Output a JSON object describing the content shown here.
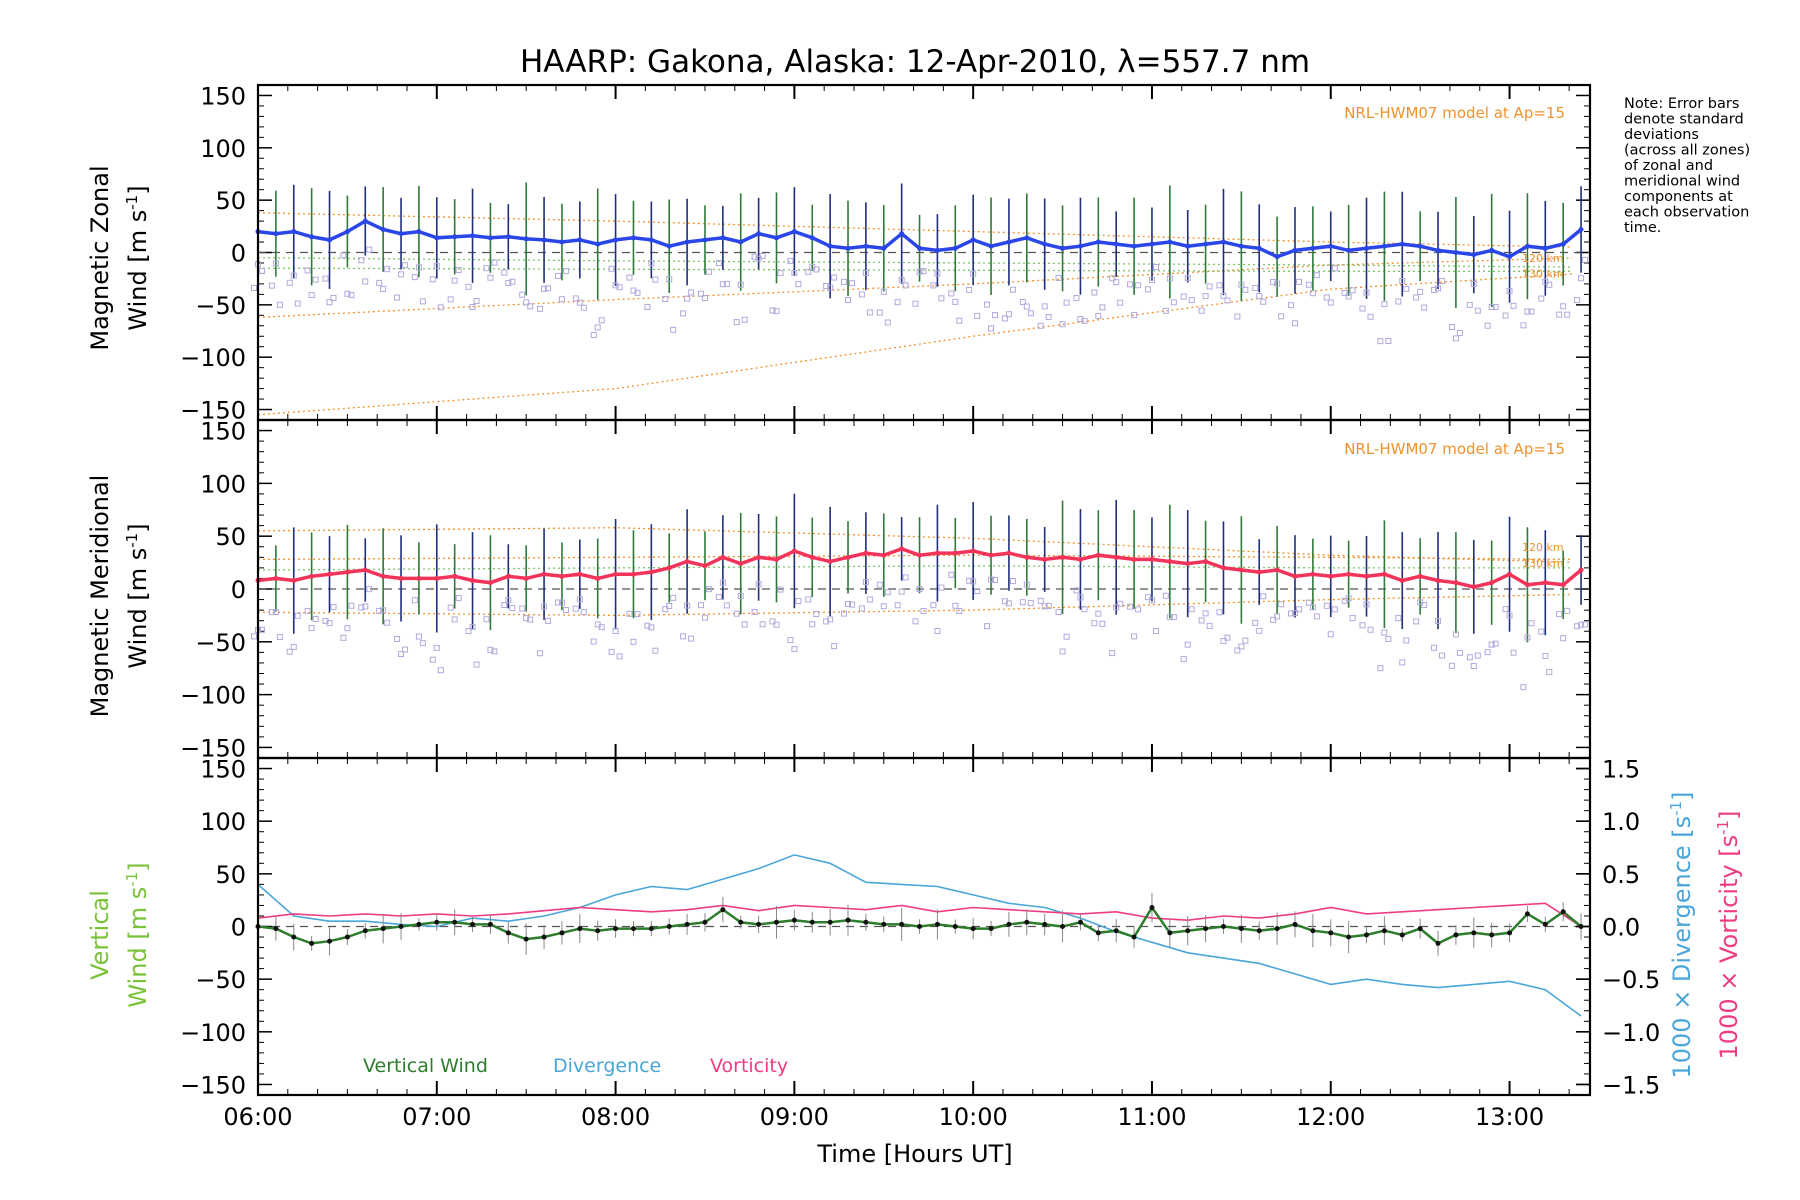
{
  "title": "HAARP: Gakona,  Alaska: 12-Apr-2010, λ=557.7 nm",
  "note_lines": [
    "Note: Error bars",
    "denote standard",
    "deviations",
    "(across all zones)",
    "of zonal and",
    "meridional wind",
    "components at",
    "each observation",
    "time."
  ],
  "x_axis": {
    "label": "Time [Hours UT]",
    "ticks": [
      "06:00",
      "07:00",
      "08:00",
      "09:00",
      "10:00",
      "11:00",
      "12:00",
      "13:00"
    ],
    "range_hours": [
      6.0,
      13.45
    ]
  },
  "colors": {
    "zonal": "#2a46e8",
    "meridional": "#f2335a",
    "vertical_label": "#7ac23a",
    "vertical_line": "#2d7d2d",
    "divergence": "#4aa6d9",
    "vorticity": "#ee3c83",
    "model": "#f0922e",
    "scatter": "#b2a9dc"
  },
  "panels": {
    "zonal": {
      "ylabel_line1": "Magnetic Zonal",
      "ylabel_line2": "Wind [m s",
      "ylabel_sup": "-1",
      "ylabel_end": "]",
      "model_label": "NRL-HWM07 model at Ap=15",
      "alt_label_1": "120 km",
      "alt_label_2": "130 km",
      "yticks": [
        "150",
        "100",
        "50",
        "0",
        "−50",
        "−100",
        "−150"
      ]
    },
    "meridional": {
      "ylabel_line1": "Magnetic Meridional",
      "ylabel_line2": "Wind [m s",
      "ylabel_sup": "-1",
      "ylabel_end": "]",
      "model_label": "NRL-HWM07 model at Ap=15",
      "alt_label_1": "120 km",
      "alt_label_2": "130 km",
      "yticks": [
        "150",
        "100",
        "50",
        "0",
        "−50",
        "−100",
        "−150"
      ]
    },
    "vertical": {
      "ylabel_line1": "Vertical",
      "ylabel_line2": "Wind [m s",
      "ylabel_sup": "-1",
      "ylabel_end": "]",
      "yticks": [
        "150",
        "100",
        "50",
        "0",
        "−50",
        "−100",
        "−150"
      ],
      "right_ticks": [
        "1.5",
        "1.0",
        "0.5",
        "0.0",
        "−0.5",
        "−1.0",
        "−1.5"
      ],
      "right_label_div": "1000 × Divergence [s",
      "right_label_vor": "1000 × Vorticity [s",
      "right_sup": "-1",
      "right_end": "]",
      "legend": [
        "Vertical Wind",
        "Divergence",
        "Vorticity"
      ]
    }
  },
  "chart_data": [
    {
      "type": "line",
      "title": "HAARP: Gakona,  Alaska: 12-Apr-2010, λ=557.7 nm",
      "ylabel": "Magnetic Zonal Wind [m s-1]",
      "ylim": [
        -160,
        160
      ],
      "series": [
        {
          "x": [
            6.0,
            6.1,
            6.2,
            6.3,
            6.4,
            6.5,
            6.6,
            6.7,
            6.8,
            6.9,
            7.0,
            7.1,
            7.2,
            7.3,
            7.4,
            7.5,
            7.6,
            7.7,
            7.8,
            7.9,
            8.0,
            8.1,
            8.2,
            8.3,
            8.4,
            8.5,
            8.6,
            8.7,
            8.8,
            8.9,
            9.0,
            9.1,
            9.2,
            9.3,
            9.4,
            9.5,
            9.6,
            9.7,
            9.8,
            9.9,
            10.0,
            10.1,
            10.2,
            10.3,
            10.4,
            10.5,
            10.6,
            10.7,
            10.8,
            10.9,
            11.0,
            11.1,
            11.2,
            11.3,
            11.4,
            11.5,
            11.6,
            11.7,
            11.8,
            11.9,
            12.0,
            12.1,
            12.2,
            12.3,
            12.4,
            12.5,
            12.6,
            12.7,
            12.8,
            12.9,
            13.0,
            13.1,
            13.2,
            13.3,
            13.4
          ],
          "y": [
            20,
            18,
            20,
            15,
            12,
            20,
            30,
            22,
            18,
            20,
            14,
            15,
            16,
            14,
            15,
            13,
            12,
            10,
            12,
            8,
            12,
            14,
            12,
            6,
            10,
            12,
            14,
            10,
            18,
            14,
            20,
            14,
            6,
            4,
            6,
            4,
            18,
            4,
            2,
            4,
            12,
            6,
            10,
            14,
            8,
            4,
            6,
            10,
            8,
            6,
            8,
            10,
            6,
            8,
            10,
            6,
            4,
            -4,
            2,
            4,
            6,
            2,
            4,
            6,
            8,
            6,
            2,
            0,
            -2,
            2,
            -4,
            6,
            4,
            8,
            22
          ]
        }
      ],
      "model_curves": [
        {
          "x": [
            6.0,
            8.0,
            10.0,
            12.0,
            13.4
          ],
          "y": [
            -62,
            -45,
            -30,
            -12,
            -5
          ]
        },
        {
          "x": [
            6.0,
            8.0,
            10.0,
            12.0,
            13.4
          ],
          "y": [
            -155,
            -130,
            -80,
            -35,
            -20
          ]
        },
        {
          "x": [
            6.0,
            8.0,
            10.0,
            12.0,
            13.4
          ],
          "y": [
            38,
            30,
            20,
            10,
            5
          ]
        },
        {
          "x": [
            6.0,
            8.0,
            10.0,
            12.0,
            13.4
          ],
          "y": [
            -15,
            -16,
            -17,
            -18,
            -18
          ]
        },
        {
          "x": [
            6.0,
            8.0,
            10.0,
            12.0,
            13.4
          ],
          "y": [
            -5,
            -8,
            -10,
            -12,
            -14
          ]
        }
      ]
    },
    {
      "type": "line",
      "ylabel": "Magnetic Meridional Wind [m s-1]",
      "ylim": [
        -160,
        160
      ],
      "series": [
        {
          "x": [
            6.0,
            6.1,
            6.2,
            6.3,
            6.4,
            6.5,
            6.6,
            6.7,
            6.8,
            6.9,
            7.0,
            7.1,
            7.2,
            7.3,
            7.4,
            7.5,
            7.6,
            7.7,
            7.8,
            7.9,
            8.0,
            8.1,
            8.2,
            8.3,
            8.4,
            8.5,
            8.6,
            8.7,
            8.8,
            8.9,
            9.0,
            9.1,
            9.2,
            9.3,
            9.4,
            9.5,
            9.6,
            9.7,
            9.8,
            9.9,
            10.0,
            10.1,
            10.2,
            10.3,
            10.4,
            10.5,
            10.6,
            10.7,
            10.8,
            10.9,
            11.0,
            11.1,
            11.2,
            11.3,
            11.4,
            11.5,
            11.6,
            11.7,
            11.8,
            11.9,
            12.0,
            12.1,
            12.2,
            12.3,
            12.4,
            12.5,
            12.6,
            12.7,
            12.8,
            12.9,
            13.0,
            13.1,
            13.2,
            13.3,
            13.4
          ],
          "y": [
            8,
            10,
            8,
            12,
            14,
            16,
            18,
            12,
            10,
            10,
            10,
            12,
            8,
            6,
            12,
            10,
            14,
            12,
            14,
            10,
            14,
            14,
            16,
            20,
            26,
            22,
            30,
            24,
            30,
            28,
            36,
            30,
            26,
            30,
            34,
            32,
            38,
            32,
            34,
            34,
            36,
            32,
            34,
            30,
            28,
            30,
            28,
            32,
            30,
            28,
            28,
            26,
            24,
            26,
            20,
            18,
            16,
            18,
            12,
            14,
            12,
            14,
            12,
            14,
            8,
            12,
            8,
            6,
            2,
            6,
            14,
            4,
            6,
            4,
            18
          ]
        }
      ],
      "model_curves": [
        {
          "x": [
            6.0,
            8.0,
            10.0,
            12.0,
            13.4
          ],
          "y": [
            55,
            58,
            48,
            32,
            25
          ]
        },
        {
          "x": [
            6.0,
            8.0,
            10.0,
            12.0,
            13.4
          ],
          "y": [
            -22,
            -25,
            -20,
            -10,
            -5
          ]
        },
        {
          "x": [
            6.0,
            8.0,
            10.0,
            12.0,
            13.4
          ],
          "y": [
            28,
            30,
            32,
            30,
            28
          ]
        },
        {
          "x": [
            6.0,
            8.0,
            10.0,
            12.0,
            13.4
          ],
          "y": [
            18,
            20,
            22,
            20,
            20
          ]
        }
      ]
    },
    {
      "type": "line",
      "ylabel": "Vertical Wind [m s-1]",
      "ylim": [
        -160,
        160
      ],
      "y2lim": [
        -1.6,
        1.6
      ],
      "legend_placement": "bottom-left",
      "series": [
        {
          "name": "Vertical Wind",
          "x": [
            6.0,
            6.1,
            6.2,
            6.3,
            6.4,
            6.5,
            6.6,
            6.7,
            6.8,
            6.9,
            7.0,
            7.1,
            7.2,
            7.3,
            7.4,
            7.5,
            7.6,
            7.7,
            7.8,
            7.9,
            8.0,
            8.1,
            8.2,
            8.3,
            8.4,
            8.5,
            8.6,
            8.7,
            8.8,
            8.9,
            9.0,
            9.1,
            9.2,
            9.3,
            9.4,
            9.5,
            9.6,
            9.7,
            9.8,
            9.9,
            10.0,
            10.1,
            10.2,
            10.3,
            10.4,
            10.5,
            10.6,
            10.7,
            10.8,
            10.9,
            11.0,
            11.1,
            11.2,
            11.3,
            11.4,
            11.5,
            11.6,
            11.7,
            11.8,
            11.9,
            12.0,
            12.1,
            12.2,
            12.3,
            12.4,
            12.5,
            12.6,
            12.7,
            12.8,
            12.9,
            13.0,
            13.1,
            13.2,
            13.3,
            13.4
          ],
          "y": [
            0,
            -2,
            -10,
            -16,
            -14,
            -10,
            -4,
            -2,
            0,
            2,
            4,
            4,
            2,
            2,
            -6,
            -12,
            -10,
            -6,
            -2,
            -4,
            -2,
            -2,
            -2,
            0,
            2,
            4,
            16,
            4,
            2,
            4,
            6,
            4,
            4,
            6,
            4,
            2,
            2,
            0,
            2,
            0,
            -2,
            -2,
            2,
            4,
            2,
            0,
            4,
            -6,
            -4,
            -10,
            18,
            -6,
            -4,
            -2,
            0,
            -2,
            -4,
            -2,
            2,
            -4,
            -6,
            -10,
            -8,
            -4,
            -8,
            -2,
            -16,
            -8,
            -6,
            -8,
            -6,
            12,
            2,
            14,
            0
          ]
        },
        {
          "name": "Divergence",
          "axis": "right",
          "x": [
            6.0,
            6.2,
            6.4,
            6.6,
            6.8,
            7.0,
            7.2,
            7.4,
            7.6,
            7.8,
            8.0,
            8.2,
            8.4,
            8.6,
            8.8,
            9.0,
            9.2,
            9.4,
            9.6,
            9.8,
            10.0,
            10.2,
            10.4,
            10.6,
            10.8,
            11.0,
            11.2,
            11.4,
            11.6,
            11.8,
            12.0,
            12.2,
            12.4,
            12.6,
            12.8,
            13.0,
            13.2,
            13.4
          ],
          "y": [
            0.4,
            0.1,
            0.05,
            0.05,
            0.02,
            0.0,
            0.08,
            0.05,
            0.1,
            0.18,
            0.3,
            0.38,
            0.35,
            0.45,
            0.55,
            0.68,
            0.6,
            0.42,
            0.4,
            0.38,
            0.3,
            0.22,
            0.18,
            0.08,
            -0.05,
            -0.15,
            -0.25,
            -0.3,
            -0.35,
            -0.45,
            -0.55,
            -0.5,
            -0.55,
            -0.58,
            -0.55,
            -0.52,
            -0.6,
            -0.85
          ]
        },
        {
          "name": "Vorticity",
          "axis": "right",
          "x": [
            6.0,
            6.2,
            6.4,
            6.6,
            6.8,
            7.0,
            7.2,
            7.4,
            7.6,
            7.8,
            8.0,
            8.2,
            8.4,
            8.6,
            8.8,
            9.0,
            9.2,
            9.4,
            9.6,
            9.8,
            10.0,
            10.2,
            10.4,
            10.6,
            10.8,
            11.0,
            11.2,
            11.4,
            11.6,
            11.8,
            12.0,
            12.2,
            12.4,
            12.6,
            12.8,
            13.0,
            13.2,
            13.4
          ],
          "y": [
            0.08,
            0.12,
            0.1,
            0.12,
            0.1,
            0.12,
            0.1,
            0.12,
            0.15,
            0.18,
            0.16,
            0.14,
            0.16,
            0.2,
            0.15,
            0.2,
            0.18,
            0.16,
            0.2,
            0.14,
            0.18,
            0.16,
            0.14,
            0.12,
            0.14,
            0.08,
            0.06,
            0.1,
            0.08,
            0.12,
            0.18,
            0.12,
            0.14,
            0.16,
            0.18,
            0.2,
            0.22,
            0.0
          ]
        }
      ]
    }
  ]
}
